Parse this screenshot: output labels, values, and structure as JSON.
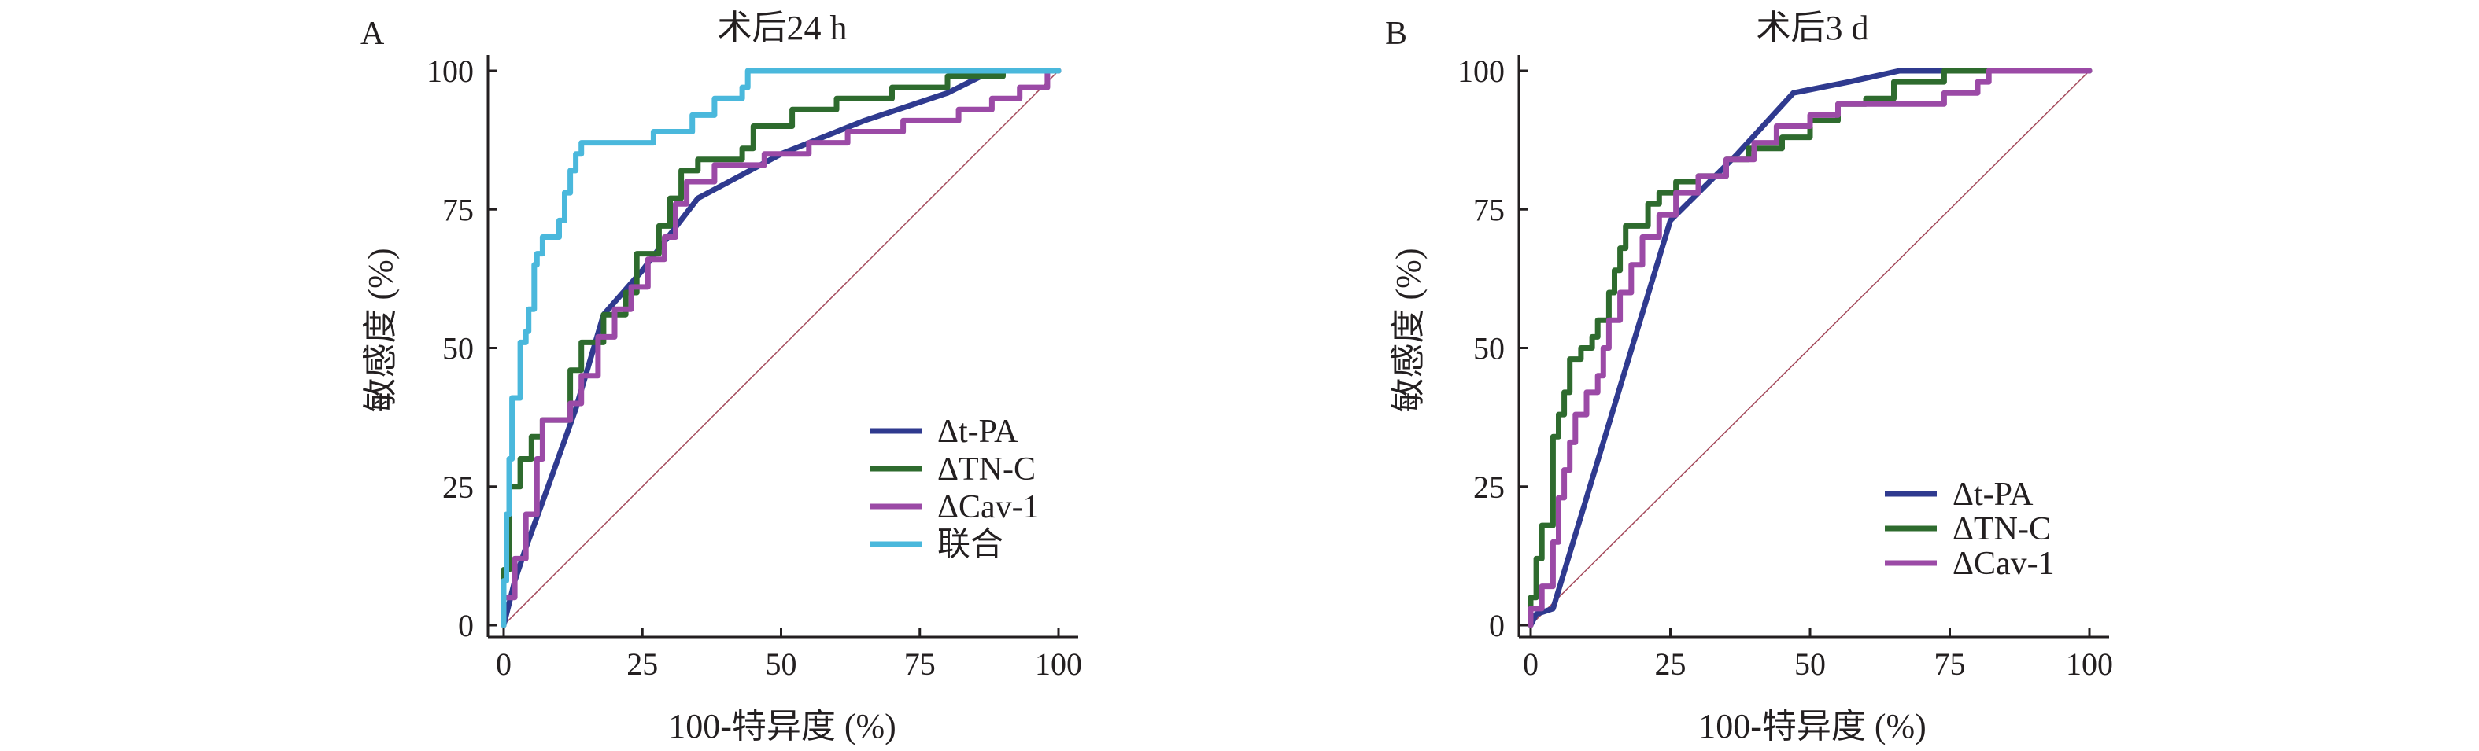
{
  "colors": {
    "t_pa": "#2f3a8f",
    "tn_c": "#2e6b2e",
    "cav_1": "#9b4aa6",
    "combined": "#4ab8dc",
    "reference": "#a4495b"
  },
  "chart_data": [
    {
      "type": "line",
      "panel": "A",
      "title": "术后24 h",
      "xlabel": "100-特异度 (%)",
      "ylabel": "敏感度 (%)",
      "xlim": [
        0,
        100
      ],
      "ylim": [
        0,
        100
      ],
      "xticks": [
        "0",
        "25",
        "50",
        "75",
        "100"
      ],
      "yticks": [
        "0",
        "25",
        "50",
        "75",
        "100"
      ],
      "legend_position": "bottom-right",
      "reference_line": [
        [
          0,
          0
        ],
        [
          100,
          100
        ]
      ],
      "series": [
        {
          "name": "Δt-PA",
          "color_key": "t_pa",
          "step": false,
          "points": [
            [
              0,
              0
            ],
            [
              2,
              8
            ],
            [
              4,
              14
            ],
            [
              8,
              25
            ],
            [
              13,
              39
            ],
            [
              18,
              56
            ],
            [
              25,
              64
            ],
            [
              35,
              77
            ],
            [
              50,
              85
            ],
            [
              65,
              91
            ],
            [
              80,
              96
            ],
            [
              88,
              100
            ],
            [
              100,
              100
            ]
          ]
        },
        {
          "name": "ΔTN-C",
          "color_key": "tn_c",
          "step": true,
          "points": [
            [
              0,
              0
            ],
            [
              0,
              10
            ],
            [
              1,
              10
            ],
            [
              1,
              25
            ],
            [
              3,
              25
            ],
            [
              3,
              30
            ],
            [
              5,
              30
            ],
            [
              5,
              34
            ],
            [
              7,
              34
            ],
            [
              7,
              37
            ],
            [
              12,
              37
            ],
            [
              12,
              46
            ],
            [
              14,
              46
            ],
            [
              14,
              51
            ],
            [
              18,
              51
            ],
            [
              18,
              56
            ],
            [
              22,
              56
            ],
            [
              22,
              60
            ],
            [
              24,
              60
            ],
            [
              24,
              67
            ],
            [
              28,
              67
            ],
            [
              28,
              72
            ],
            [
              30,
              72
            ],
            [
              30,
              77
            ],
            [
              32,
              77
            ],
            [
              32,
              82
            ],
            [
              35,
              82
            ],
            [
              35,
              84
            ],
            [
              43,
              84
            ],
            [
              43,
              86
            ],
            [
              45,
              86
            ],
            [
              45,
              90
            ],
            [
              52,
              90
            ],
            [
              52,
              93
            ],
            [
              60,
              93
            ],
            [
              60,
              95
            ],
            [
              70,
              95
            ],
            [
              70,
              97
            ],
            [
              80,
              97
            ],
            [
              80,
              99
            ],
            [
              90,
              99
            ],
            [
              90,
              100
            ],
            [
              100,
              100
            ]
          ]
        },
        {
          "name": "ΔCav-1",
          "color_key": "cav_1",
          "step": true,
          "points": [
            [
              0,
              0
            ],
            [
              0,
              5
            ],
            [
              2,
              5
            ],
            [
              2,
              12
            ],
            [
              4,
              12
            ],
            [
              4,
              20
            ],
            [
              6,
              20
            ],
            [
              6,
              30
            ],
            [
              7,
              30
            ],
            [
              7,
              37
            ],
            [
              12,
              37
            ],
            [
              12,
              40
            ],
            [
              14,
              40
            ],
            [
              14,
              45
            ],
            [
              17,
              45
            ],
            [
              17,
              52
            ],
            [
              20,
              52
            ],
            [
              20,
              57
            ],
            [
              23,
              57
            ],
            [
              23,
              61
            ],
            [
              26,
              61
            ],
            [
              26,
              66
            ],
            [
              29,
              66
            ],
            [
              29,
              70
            ],
            [
              31,
              70
            ],
            [
              31,
              76
            ],
            [
              33,
              76
            ],
            [
              33,
              80
            ],
            [
              38,
              80
            ],
            [
              38,
              83
            ],
            [
              47,
              83
            ],
            [
              47,
              85
            ],
            [
              55,
              85
            ],
            [
              55,
              87
            ],
            [
              62,
              87
            ],
            [
              62,
              89
            ],
            [
              72,
              89
            ],
            [
              72,
              91
            ],
            [
              82,
              91
            ],
            [
              82,
              93
            ],
            [
              88,
              93
            ],
            [
              88,
              95
            ],
            [
              93,
              95
            ],
            [
              93,
              97
            ],
            [
              98,
              97
            ],
            [
              98,
              100
            ],
            [
              100,
              100
            ]
          ]
        },
        {
          "name": "联合",
          "color_key": "combined",
          "step": true,
          "points": [
            [
              0,
              0
            ],
            [
              0,
              8
            ],
            [
              0.5,
              8
            ],
            [
              0.5,
              20
            ],
            [
              1,
              20
            ],
            [
              1,
              30
            ],
            [
              1.5,
              30
            ],
            [
              1.5,
              41
            ],
            [
              3,
              41
            ],
            [
              3,
              51
            ],
            [
              4,
              51
            ],
            [
              4,
              53
            ],
            [
              4.5,
              53
            ],
            [
              4.5,
              57
            ],
            [
              5.5,
              57
            ],
            [
              5.5,
              65
            ],
            [
              6,
              65
            ],
            [
              6,
              67
            ],
            [
              7,
              67
            ],
            [
              7,
              70
            ],
            [
              10,
              70
            ],
            [
              10,
              73
            ],
            [
              11,
              73
            ],
            [
              11,
              78
            ],
            [
              12,
              78
            ],
            [
              12,
              82
            ],
            [
              13,
              82
            ],
            [
              13,
              85
            ],
            [
              14,
              85
            ],
            [
              14,
              87
            ],
            [
              27,
              87
            ],
            [
              27,
              89
            ],
            [
              34,
              89
            ],
            [
              34,
              92
            ],
            [
              38,
              92
            ],
            [
              38,
              95
            ],
            [
              43,
              95
            ],
            [
              43,
              97
            ],
            [
              44,
              97
            ],
            [
              44,
              100
            ],
            [
              100,
              100
            ]
          ]
        }
      ]
    },
    {
      "type": "line",
      "panel": "B",
      "title": "术后3 d",
      "xlabel": "100-特异度 (%)",
      "ylabel": "敏感度 (%)",
      "xlim": [
        0,
        100
      ],
      "ylim": [
        0,
        100
      ],
      "xticks": [
        "0",
        "25",
        "50",
        "75",
        "100"
      ],
      "yticks": [
        "0",
        "25",
        "50",
        "75",
        "100"
      ],
      "legend_position": "bottom-right",
      "reference_line": [
        [
          0,
          0
        ],
        [
          100,
          100
        ]
      ],
      "series": [
        {
          "name": "Δt-PA",
          "color_key": "t_pa",
          "step": false,
          "points": [
            [
              0,
              0
            ],
            [
              1,
              2
            ],
            [
              4,
              3
            ],
            [
              25,
              73
            ],
            [
              37,
              85
            ],
            [
              47,
              96
            ],
            [
              57,
              98
            ],
            [
              66,
              100
            ],
            [
              100,
              100
            ]
          ]
        },
        {
          "name": "ΔTN-C",
          "color_key": "tn_c",
          "step": true,
          "points": [
            [
              0,
              0
            ],
            [
              0,
              5
            ],
            [
              1,
              5
            ],
            [
              1,
              12
            ],
            [
              2,
              12
            ],
            [
              2,
              18
            ],
            [
              4,
              18
            ],
            [
              4,
              34
            ],
            [
              5,
              34
            ],
            [
              5,
              38
            ],
            [
              6,
              38
            ],
            [
              6,
              42
            ],
            [
              7,
              42
            ],
            [
              7,
              48
            ],
            [
              9,
              48
            ],
            [
              9,
              50
            ],
            [
              11,
              50
            ],
            [
              11,
              52
            ],
            [
              12,
              52
            ],
            [
              12,
              55
            ],
            [
              14,
              55
            ],
            [
              14,
              60
            ],
            [
              15,
              60
            ],
            [
              15,
              64
            ],
            [
              16,
              64
            ],
            [
              16,
              68
            ],
            [
              17,
              68
            ],
            [
              17,
              72
            ],
            [
              21,
              72
            ],
            [
              21,
              76
            ],
            [
              23,
              76
            ],
            [
              23,
              78
            ],
            [
              26,
              78
            ],
            [
              26,
              80
            ],
            [
              30,
              80
            ],
            [
              30,
              81
            ],
            [
              35,
              81
            ],
            [
              35,
              84
            ],
            [
              39,
              84
            ],
            [
              39,
              86
            ],
            [
              45,
              86
            ],
            [
              45,
              88
            ],
            [
              50,
              88
            ],
            [
              50,
              91
            ],
            [
              55,
              91
            ],
            [
              55,
              94
            ],
            [
              60,
              94
            ],
            [
              60,
              95
            ],
            [
              65,
              95
            ],
            [
              65,
              98
            ],
            [
              74,
              98
            ],
            [
              74,
              100
            ],
            [
              100,
              100
            ]
          ]
        },
        {
          "name": "ΔCav-1",
          "color_key": "cav_1",
          "step": true,
          "points": [
            [
              0,
              0
            ],
            [
              0,
              3
            ],
            [
              2,
              3
            ],
            [
              2,
              7
            ],
            [
              4,
              7
            ],
            [
              4,
              15
            ],
            [
              5,
              15
            ],
            [
              5,
              23
            ],
            [
              6,
              23
            ],
            [
              6,
              28
            ],
            [
              7,
              28
            ],
            [
              7,
              33
            ],
            [
              8,
              33
            ],
            [
              8,
              38
            ],
            [
              10,
              38
            ],
            [
              10,
              42
            ],
            [
              12,
              42
            ],
            [
              12,
              45
            ],
            [
              13,
              45
            ],
            [
              13,
              50
            ],
            [
              14,
              50
            ],
            [
              14,
              55
            ],
            [
              16,
              55
            ],
            [
              16,
              60
            ],
            [
              18,
              60
            ],
            [
              18,
              65
            ],
            [
              20,
              65
            ],
            [
              20,
              70
            ],
            [
              23,
              70
            ],
            [
              23,
              74
            ],
            [
              26,
              74
            ],
            [
              26,
              78
            ],
            [
              30,
              78
            ],
            [
              30,
              81
            ],
            [
              35,
              81
            ],
            [
              35,
              84
            ],
            [
              40,
              84
            ],
            [
              40,
              87
            ],
            [
              44,
              87
            ],
            [
              44,
              90
            ],
            [
              50,
              90
            ],
            [
              50,
              92
            ],
            [
              55,
              92
            ],
            [
              55,
              94
            ],
            [
              74,
              94
            ],
            [
              74,
              96
            ],
            [
              80,
              96
            ],
            [
              80,
              98
            ],
            [
              82,
              98
            ],
            [
              82,
              100
            ],
            [
              100,
              100
            ]
          ]
        }
      ]
    }
  ]
}
